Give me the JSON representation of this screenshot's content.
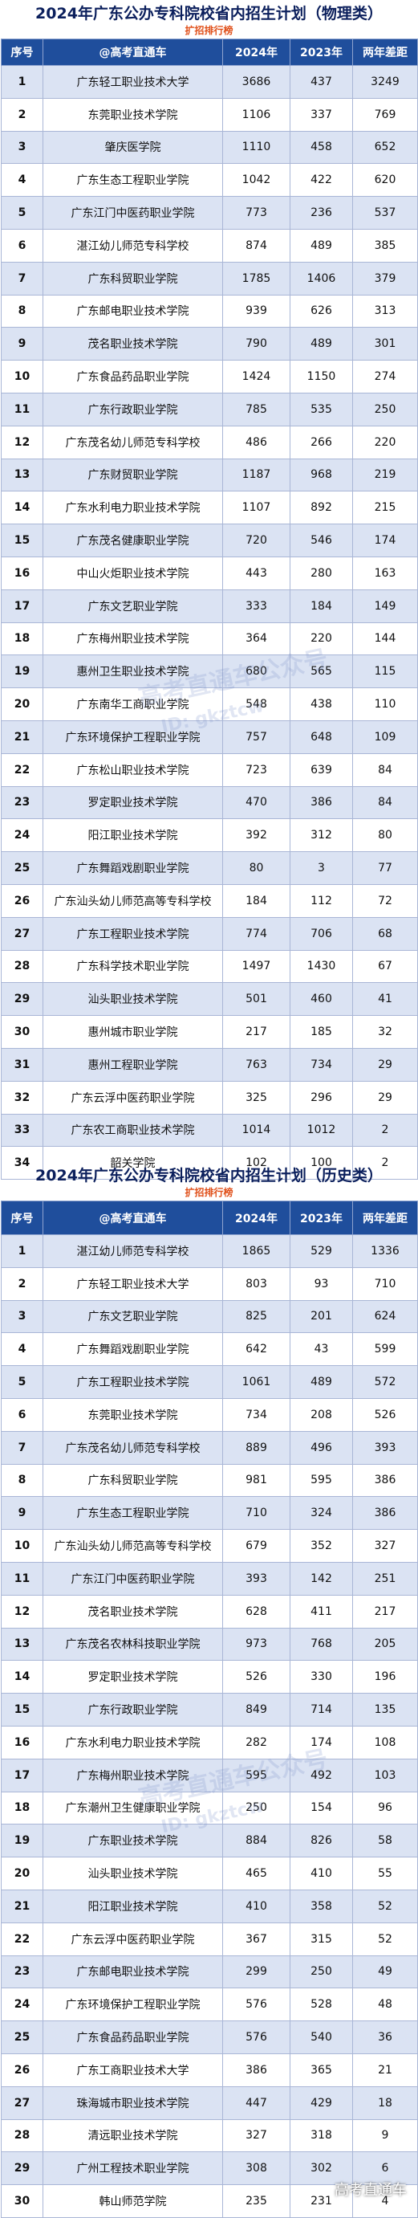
{
  "tables": [
    {
      "title": "2024年广东公办专科院校省内招生计划（物理类）",
      "subtitle": "扩招排行榜",
      "headers": [
        "序号",
        "@高考直通车",
        "2024年",
        "2023年",
        "两年差距"
      ],
      "rows": [
        [
          "1",
          "广东轻工职业技术大学",
          "3686",
          "437",
          "3249"
        ],
        [
          "2",
          "东莞职业技术学院",
          "1106",
          "337",
          "769"
        ],
        [
          "3",
          "肇庆医学院",
          "1110",
          "458",
          "652"
        ],
        [
          "4",
          "广东生态工程职业学院",
          "1042",
          "422",
          "620"
        ],
        [
          "5",
          "广东江门中医药职业学院",
          "773",
          "236",
          "537"
        ],
        [
          "6",
          "湛江幼儿师范专科学校",
          "874",
          "489",
          "385"
        ],
        [
          "7",
          "广东科贸职业学院",
          "1785",
          "1406",
          "379"
        ],
        [
          "8",
          "广东邮电职业技术学院",
          "939",
          "626",
          "313"
        ],
        [
          "9",
          "茂名职业技术学院",
          "790",
          "489",
          "301"
        ],
        [
          "10",
          "广东食品药品职业学院",
          "1424",
          "1150",
          "274"
        ],
        [
          "11",
          "广东行政职业学院",
          "785",
          "535",
          "250"
        ],
        [
          "12",
          "广东茂名幼儿师范专科学校",
          "486",
          "266",
          "220"
        ],
        [
          "13",
          "广东财贸职业学院",
          "1187",
          "968",
          "219"
        ],
        [
          "14",
          "广东水利电力职业技术学院",
          "1107",
          "892",
          "215"
        ],
        [
          "15",
          "广东茂名健康职业学院",
          "720",
          "546",
          "174"
        ],
        [
          "16",
          "中山火炬职业技术学院",
          "443",
          "280",
          "163"
        ],
        [
          "17",
          "广东文艺职业学院",
          "333",
          "184",
          "149"
        ],
        [
          "18",
          "广东梅州职业技术学院",
          "364",
          "220",
          "144"
        ],
        [
          "19",
          "惠州卫生职业技术学院",
          "680",
          "565",
          "115"
        ],
        [
          "20",
          "广东南华工商职业学院",
          "548",
          "438",
          "110"
        ],
        [
          "21",
          "广东环境保护工程职业学院",
          "757",
          "648",
          "109"
        ],
        [
          "22",
          "广东松山职业技术学院",
          "723",
          "639",
          "84"
        ],
        [
          "23",
          "罗定职业技术学院",
          "470",
          "386",
          "84"
        ],
        [
          "24",
          "阳江职业技术学院",
          "392",
          "312",
          "80"
        ],
        [
          "25",
          "广东舞蹈戏剧职业学院",
          "80",
          "3",
          "77"
        ],
        [
          "26",
          "广东汕头幼儿师范高等专科学校",
          "184",
          "112",
          "72"
        ],
        [
          "27",
          "广东工程职业技术学院",
          "774",
          "706",
          "68"
        ],
        [
          "28",
          "广东科学技术职业学院",
          "1497",
          "1430",
          "67"
        ],
        [
          "29",
          "汕头职业技术学院",
          "501",
          "460",
          "41"
        ],
        [
          "30",
          "惠州城市职业学院",
          "217",
          "185",
          "32"
        ],
        [
          "31",
          "惠州工程职业学院",
          "763",
          "734",
          "29"
        ],
        [
          "32",
          "广东云浮中医药职业学院",
          "325",
          "296",
          "29"
        ],
        [
          "33",
          "广东农工商职业技术学院",
          "1014",
          "1012",
          "2"
        ],
        [
          "34",
          "韶关学院",
          "102",
          "100",
          "2"
        ]
      ]
    },
    {
      "title": "2024年广东公办专科院校省内招生计划（历史类）",
      "subtitle": "扩招排行榜",
      "headers": [
        "序号",
        "@高考直通车",
        "2024年",
        "2023年",
        "两年差距"
      ],
      "rows": [
        [
          "1",
          "湛江幼儿师范专科学校",
          "1865",
          "529",
          "1336"
        ],
        [
          "2",
          "广东轻工职业技术大学",
          "803",
          "93",
          "710"
        ],
        [
          "3",
          "广东文艺职业学院",
          "825",
          "201",
          "624"
        ],
        [
          "4",
          "广东舞蹈戏剧职业学院",
          "642",
          "43",
          "599"
        ],
        [
          "5",
          "广东工程职业技术学院",
          "1061",
          "489",
          "572"
        ],
        [
          "6",
          "东莞职业技术学院",
          "734",
          "208",
          "526"
        ],
        [
          "7",
          "广东茂名幼儿师范专科学校",
          "889",
          "496",
          "393"
        ],
        [
          "8",
          "广东科贸职业学院",
          "981",
          "595",
          "386"
        ],
        [
          "9",
          "广东生态工程职业学院",
          "710",
          "324",
          "386"
        ],
        [
          "10",
          "广东汕头幼儿师范高等专科学校",
          "679",
          "352",
          "327"
        ],
        [
          "11",
          "广东江门中医药职业学院",
          "393",
          "142",
          "251"
        ],
        [
          "12",
          "茂名职业技术学院",
          "628",
          "411",
          "217"
        ],
        [
          "13",
          "广东茂名农林科技职业学院",
          "973",
          "768",
          "205"
        ],
        [
          "14",
          "罗定职业技术学院",
          "526",
          "330",
          "196"
        ],
        [
          "15",
          "广东行政职业学院",
          "849",
          "714",
          "135"
        ],
        [
          "16",
          "广东水利电力职业技术学院",
          "282",
          "174",
          "108"
        ],
        [
          "17",
          "广东梅州职业技术学院",
          "595",
          "492",
          "103"
        ],
        [
          "18",
          "广东潮州卫生健康职业学院",
          "250",
          "154",
          "96"
        ],
        [
          "19",
          "广东职业技术学院",
          "884",
          "826",
          "58"
        ],
        [
          "20",
          "汕头职业技术学院",
          "465",
          "410",
          "55"
        ],
        [
          "21",
          "阳江职业技术学院",
          "410",
          "358",
          "52"
        ],
        [
          "22",
          "广东云浮中医药职业学院",
          "367",
          "315",
          "52"
        ],
        [
          "23",
          "广东邮电职业技术学院",
          "299",
          "250",
          "49"
        ],
        [
          "24",
          "广东环境保护工程职业学院",
          "576",
          "528",
          "48"
        ],
        [
          "25",
          "广东食品药品职业学院",
          "576",
          "540",
          "36"
        ],
        [
          "26",
          "广东工商职业技术大学",
          "386",
          "365",
          "21"
        ],
        [
          "27",
          "珠海城市职业技术学院",
          "447",
          "429",
          "18"
        ],
        [
          "28",
          "清远职业技术学院",
          "327",
          "318",
          "9"
        ],
        [
          "29",
          "广州工程技术职业学院",
          "308",
          "302",
          "6"
        ],
        [
          "30",
          "韩山师范学院",
          "235",
          "231",
          "4"
        ]
      ]
    }
  ],
  "watermark": {
    "center_text": "高考直通车公众号",
    "id_text": "ID: gkztcw",
    "corner_text": "高考直通车"
  }
}
